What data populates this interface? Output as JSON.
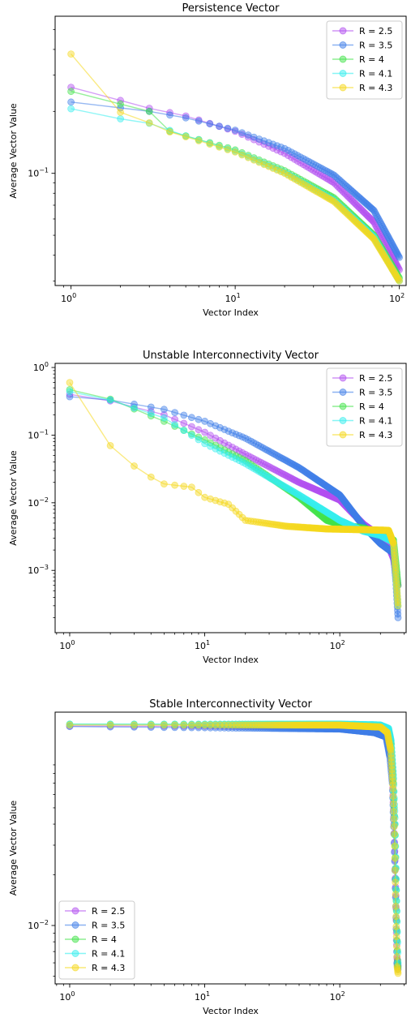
{
  "series_names": [
    "R = 2.5",
    "R = 3.5",
    "R = 4",
    "R = 4.1",
    "R = 4.3"
  ],
  "series_colors": [
    "#b24ff0",
    "#3f7ee8",
    "#42e34a",
    "#35eeee",
    "#f5d81c"
  ],
  "chart_data": [
    {
      "type": "line",
      "title": "Persistence Vector",
      "xlabel": "Vector Index",
      "ylabel": "Average Vector Value",
      "xscale": "log",
      "yscale": "log",
      "xlim": [
        0.8,
        110
      ],
      "ylim": [
        0.0285,
        0.58
      ],
      "x_ticks": [
        1,
        10,
        100
      ],
      "x_tick_labels": [
        {
          "base": "10",
          "exp": "0"
        },
        {
          "base": "10",
          "exp": "1"
        },
        {
          "base": "10",
          "exp": "2"
        }
      ],
      "y_ticks": [
        0.1
      ],
      "y_tick_labels": [
        {
          "base": "10",
          "exp": "−1"
        }
      ],
      "legend": "top-right",
      "n_points": 100,
      "series": [
        {
          "name": "R = 2.5",
          "anchors": [
            [
              1,
              0.262
            ],
            [
              2,
              0.226
            ],
            [
              3,
              0.207
            ],
            [
              5,
              0.19
            ],
            [
              10,
              0.16
            ],
            [
              20,
              0.125
            ],
            [
              40,
              0.09
            ],
            [
              70,
              0.058
            ],
            [
              100,
              0.034
            ]
          ]
        },
        {
          "name": "R = 3.5",
          "anchors": [
            [
              1,
              0.222
            ],
            [
              2,
              0.208
            ],
            [
              3,
              0.2
            ],
            [
              5,
              0.186
            ],
            [
              10,
              0.162
            ],
            [
              20,
              0.132
            ],
            [
              40,
              0.098
            ],
            [
              70,
              0.066
            ],
            [
              100,
              0.039
            ]
          ]
        },
        {
          "name": "R = 4",
          "anchors": [
            [
              1,
              0.25
            ],
            [
              2,
              0.217
            ],
            [
              3,
              0.2
            ],
            [
              4,
              0.16
            ],
            [
              10,
              0.13
            ],
            [
              20,
              0.103
            ],
            [
              40,
              0.076
            ],
            [
              70,
              0.05
            ],
            [
              100,
              0.031
            ]
          ]
        },
        {
          "name": "R = 4.1",
          "anchors": [
            [
              1,
              0.206
            ],
            [
              2,
              0.184
            ],
            [
              3,
              0.175
            ],
            [
              5,
              0.152
            ],
            [
              10,
              0.128
            ],
            [
              20,
              0.101
            ],
            [
              40,
              0.074
            ],
            [
              70,
              0.049
            ],
            [
              100,
              0.03
            ]
          ]
        },
        {
          "name": "R = 4.3",
          "anchors": [
            [
              1,
              0.38
            ],
            [
              2,
              0.198
            ],
            [
              3,
              0.176
            ],
            [
              4,
              0.159
            ],
            [
              10,
              0.127
            ],
            [
              20,
              0.1
            ],
            [
              40,
              0.073
            ],
            [
              70,
              0.048
            ],
            [
              100,
              0.03
            ]
          ]
        }
      ]
    },
    {
      "type": "line",
      "title": "Unstable Interconnectivity Vector",
      "xlabel": "Vector Index",
      "ylabel": "Average Vector Value",
      "xscale": "log",
      "yscale": "log",
      "xlim": [
        0.78,
        310
      ],
      "ylim": [
        0.00012,
        1.15
      ],
      "x_ticks": [
        1,
        10,
        100
      ],
      "x_tick_labels": [
        {
          "base": "10",
          "exp": "0"
        },
        {
          "base": "10",
          "exp": "1"
        },
        {
          "base": "10",
          "exp": "2"
        }
      ],
      "y_ticks": [
        0.001,
        0.01,
        0.1,
        1
      ],
      "y_tick_labels": [
        {
          "base": "10",
          "exp": "−3"
        },
        {
          "base": "10",
          "exp": "−2"
        },
        {
          "base": "10",
          "exp": "−1"
        },
        {
          "base": "10",
          "exp": "0"
        }
      ],
      "legend": "top-right",
      "n_points": 270,
      "series": [
        {
          "name": "R = 2.5",
          "anchors": [
            [
              1,
              0.4
            ],
            [
              2,
              0.32
            ],
            [
              5,
              0.2
            ],
            [
              10,
              0.11
            ],
            [
              20,
              0.052
            ],
            [
              50,
              0.02
            ],
            [
              100,
              0.011
            ],
            [
              150,
              0.0048
            ],
            [
              220,
              0.0028
            ],
            [
              250,
              0.0015
            ],
            [
              260,
              0.0009
            ],
            [
              270,
              0.0006
            ]
          ]
        },
        {
          "name": "R = 3.5",
          "anchors": [
            [
              1,
              0.37
            ],
            [
              2,
              0.33
            ],
            [
              5,
              0.24
            ],
            [
              10,
              0.16
            ],
            [
              20,
              0.09
            ],
            [
              50,
              0.033
            ],
            [
              100,
              0.013
            ],
            [
              150,
              0.0045
            ],
            [
              200,
              0.0025
            ],
            [
              250,
              0.0018
            ],
            [
              260,
              0.0007
            ],
            [
              270,
              0.0002
            ]
          ]
        },
        {
          "name": "R = 4",
          "anchors": [
            [
              1,
              0.47
            ],
            [
              2,
              0.34
            ],
            [
              5,
              0.16
            ],
            [
              10,
              0.085
            ],
            [
              20,
              0.042
            ],
            [
              50,
              0.012
            ],
            [
              80,
              0.0055
            ],
            [
              100,
              0.0048
            ],
            [
              150,
              0.0042
            ],
            [
              200,
              0.0036
            ],
            [
              250,
              0.0028
            ],
            [
              265,
              0.0009
            ],
            [
              270,
              0.0006
            ]
          ]
        },
        {
          "name": "R = 4.1",
          "anchors": [
            [
              1,
              0.44
            ],
            [
              2,
              0.33
            ],
            [
              5,
              0.18
            ],
            [
              10,
              0.075
            ],
            [
              20,
              0.038
            ],
            [
              50,
              0.013
            ],
            [
              100,
              0.0055
            ],
            [
              150,
              0.0038
            ],
            [
              200,
              0.0033
            ],
            [
              250,
              0.0026
            ],
            [
              265,
              0.0005
            ],
            [
              270,
              0.0003
            ]
          ]
        },
        {
          "name": "R = 4.3",
          "anchors": [
            [
              1,
              0.6
            ],
            [
              2,
              0.07
            ],
            [
              3,
              0.035
            ],
            [
              4,
              0.024
            ],
            [
              5,
              0.019
            ],
            [
              8,
              0.017
            ],
            [
              10,
              0.012
            ],
            [
              15,
              0.0095
            ],
            [
              20,
              0.0055
            ],
            [
              40,
              0.0045
            ],
            [
              80,
              0.0041
            ],
            [
              150,
              0.004
            ],
            [
              230,
              0.0039
            ],
            [
              250,
              0.0025
            ],
            [
              260,
              0.0009
            ],
            [
              270,
              0.0003
            ]
          ]
        }
      ]
    },
    {
      "type": "line",
      "title": "Stable Interconnectivity Vector",
      "xlabel": "Vector Index",
      "ylabel": "Average Vector Value",
      "xscale": "log",
      "yscale": "log",
      "xlim": [
        0.78,
        310
      ],
      "ylim": [
        0.0045,
        0.185
      ],
      "x_ticks": [
        1,
        10,
        100
      ],
      "x_tick_labels": [
        {
          "base": "10",
          "exp": "0"
        },
        {
          "base": "10",
          "exp": "1"
        },
        {
          "base": "10",
          "exp": "2"
        }
      ],
      "y_ticks": [
        0.01
      ],
      "y_tick_labels": [
        {
          "base": "10",
          "exp": "−2"
        }
      ],
      "legend": "bottom-left",
      "n_points": 270,
      "series": [
        {
          "name": "R = 2.5",
          "anchors": [
            [
              1,
              0.153
            ],
            [
              100,
              0.152
            ],
            [
              180,
              0.149
            ],
            [
              220,
              0.142
            ],
            [
              235,
              0.12
            ],
            [
              245,
              0.08
            ],
            [
              252,
              0.04
            ],
            [
              260,
              0.015
            ],
            [
              265,
              0.0065
            ],
            [
              270,
              0.0058
            ]
          ]
        },
        {
          "name": "R = 3.5",
          "anchors": [
            [
              1,
              0.152
            ],
            [
              100,
              0.147
            ],
            [
              180,
              0.14
            ],
            [
              220,
              0.132
            ],
            [
              235,
              0.1
            ],
            [
              245,
              0.07
            ],
            [
              252,
              0.035
            ],
            [
              260,
              0.013
            ],
            [
              265,
              0.006
            ],
            [
              270,
              0.0055
            ]
          ]
        },
        {
          "name": "R = 4",
          "anchors": [
            [
              1,
              0.157
            ],
            [
              100,
              0.156
            ],
            [
              200,
              0.153
            ],
            [
              230,
              0.145
            ],
            [
              240,
              0.12
            ],
            [
              250,
              0.07
            ],
            [
              255,
              0.04
            ],
            [
              262,
              0.014
            ],
            [
              268,
              0.0062
            ],
            [
              272,
              0.0052
            ]
          ]
        },
        {
          "name": "R = 4.1",
          "anchors": [
            [
              1,
              0.157
            ],
            [
              100,
              0.157
            ],
            [
              200,
              0.155
            ],
            [
              230,
              0.148
            ],
            [
              240,
              0.125
            ],
            [
              250,
              0.075
            ],
            [
              257,
              0.04
            ],
            [
              264,
              0.014
            ],
            [
              270,
              0.006
            ],
            [
              274,
              0.005
            ]
          ]
        },
        {
          "name": "R = 4.3",
          "anchors": [
            [
              1,
              0.155
            ],
            [
              100,
              0.155
            ],
            [
              200,
              0.151
            ],
            [
              225,
              0.14
            ],
            [
              238,
              0.11
            ],
            [
              248,
              0.065
            ],
            [
              254,
              0.035
            ],
            [
              260,
              0.013
            ],
            [
              266,
              0.0057
            ],
            [
              270,
              0.0052
            ]
          ]
        }
      ]
    }
  ]
}
